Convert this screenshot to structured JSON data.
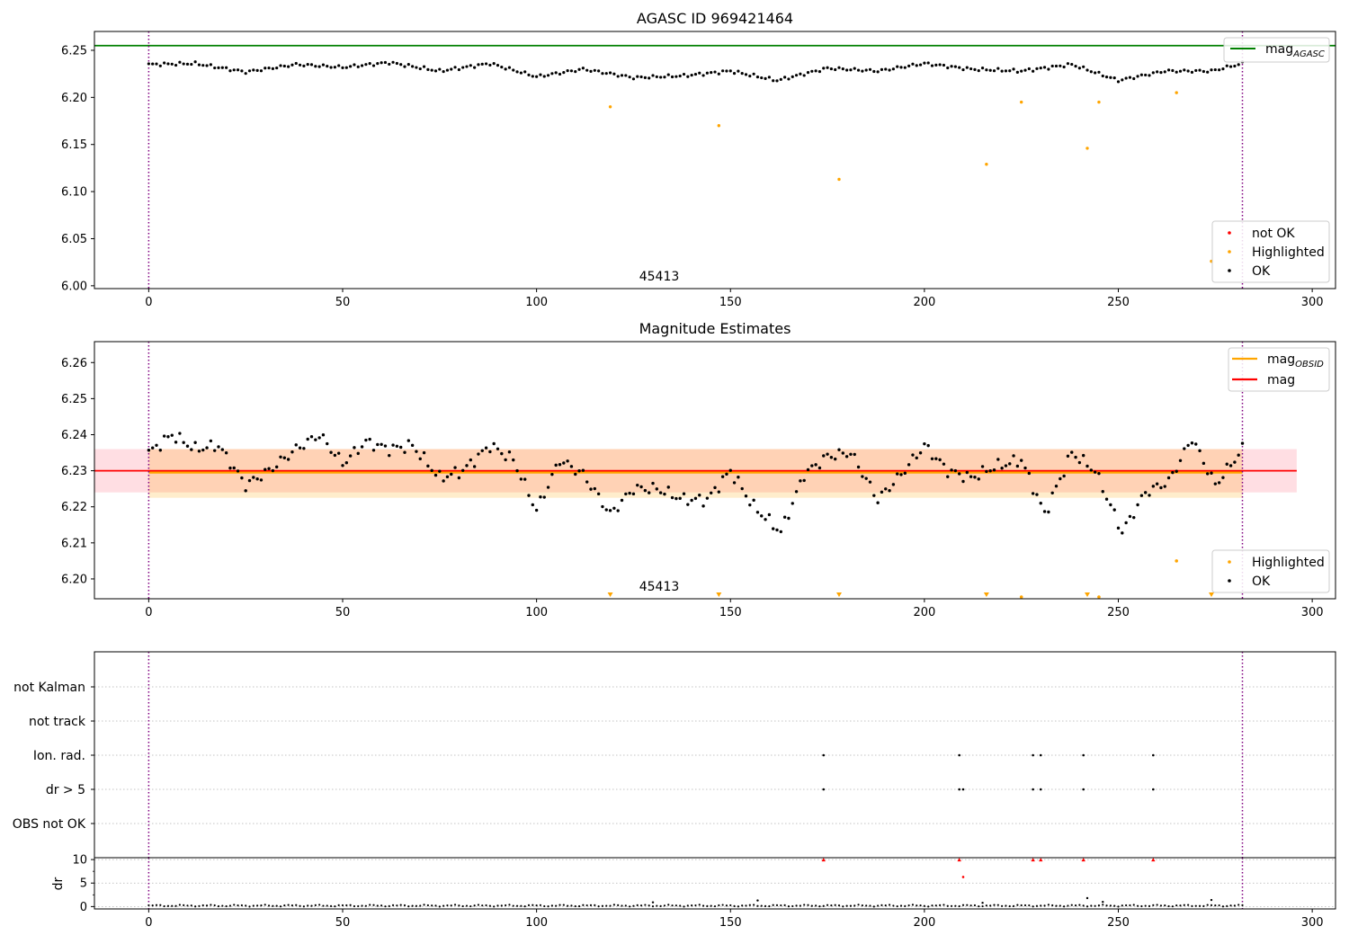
{
  "chart_data": [
    {
      "type": "scatter",
      "title": "AGASC ID 969421464",
      "annotation": "45413",
      "xlim": [
        -14,
        306
      ],
      "ylim": [
        5.997,
        6.27
      ],
      "x_ticks": [
        0,
        50,
        100,
        150,
        200,
        250,
        300
      ],
      "y_ticks": [
        6.0,
        6.05,
        6.1,
        6.15,
        6.2,
        6.25
      ],
      "grid": false,
      "vlines": [
        0,
        282
      ],
      "hlines": [
        {
          "name": "mag_AGASC",
          "label_main": "mag",
          "label_sub": "AGASC",
          "value": 6.255,
          "color": "#008000"
        }
      ],
      "legend_lines_placement": "top-right",
      "legend_points_placement": "bottom-right",
      "legend_points": [
        {
          "label": "not OK",
          "color": "#ff0000"
        },
        {
          "label": "Highlighted",
          "color": "#ffa500"
        },
        {
          "label": "OK",
          "color": "#000000"
        }
      ],
      "series": [
        {
          "name": "Highlighted",
          "color": "#ffa500",
          "x": [
            119,
            147,
            178,
            216,
            225,
            242,
            245,
            265,
            274
          ],
          "y": [
            6.19,
            6.17,
            6.113,
            6.129,
            6.195,
            6.146,
            6.195,
            6.205,
            6.026
          ]
        },
        {
          "name": "OK",
          "color": "#000000",
          "x": [
            0,
            12,
            25,
            38,
            50,
            62,
            75,
            88,
            100,
            112,
            125,
            138,
            150,
            162,
            175,
            188,
            200,
            212,
            225,
            238,
            250,
            262,
            274,
            282
          ],
          "y": [
            6.235,
            6.236,
            6.227,
            6.235,
            6.232,
            6.237,
            6.228,
            6.236,
            6.222,
            6.23,
            6.221,
            6.223,
            6.228,
            6.218,
            6.231,
            6.228,
            6.236,
            6.23,
            6.228,
            6.235,
            6.218,
            6.228,
            6.228,
            6.236
          ]
        }
      ]
    },
    {
      "type": "scatter",
      "title": "Magnitude Estimates",
      "annotation": "45413",
      "xlim": [
        -14,
        306
      ],
      "ylim": [
        6.1945,
        6.2658
      ],
      "x_ticks": [
        0,
        50,
        100,
        150,
        200,
        250,
        300
      ],
      "y_ticks": [
        6.2,
        6.21,
        6.22,
        6.23,
        6.24,
        6.25,
        6.26
      ],
      "grid": false,
      "vlines": [
        0,
        282
      ],
      "bands": [
        {
          "name": "mag_band",
          "x": [
            -14,
            296
          ],
          "y": [
            6.224,
            6.236
          ],
          "color": "#ffb6c1",
          "opacity": 0.45
        },
        {
          "name": "mag_obsid_band",
          "x": [
            0,
            282
          ],
          "y": [
            6.2225,
            6.236
          ],
          "color": "#ffa500",
          "opacity": 0.2
        }
      ],
      "hlines": [
        {
          "name": "mag_OBSID",
          "label_main": "mag",
          "label_sub": "OBSID",
          "value": 6.2295,
          "color": "#ffa500",
          "x": [
            0,
            282
          ]
        },
        {
          "name": "mag",
          "label_main": "mag",
          "label_sub": "",
          "value": 6.23,
          "color": "#ff0000",
          "x": [
            -14,
            296
          ]
        }
      ],
      "legend_lines_placement": "top-right",
      "legend_points_placement": "bottom-right",
      "legend_points": [
        {
          "label": "Highlighted",
          "color": "#ffa500"
        },
        {
          "label": "OK",
          "color": "#000000"
        }
      ],
      "offscale_markers": {
        "color": "#ffa500",
        "x": [
          119,
          147,
          178,
          216,
          242,
          274
        ]
      },
      "series": [
        {
          "name": "Highlighted",
          "color": "#ffa500",
          "x": [
            225,
            245,
            265
          ],
          "y": [
            6.195,
            6.195,
            6.205
          ]
        },
        {
          "name": "OK",
          "color": "#000000",
          "x": [
            0,
            6,
            12,
            18,
            25,
            31,
            38,
            44,
            50,
            56,
            62,
            68,
            75,
            81,
            88,
            94,
            100,
            106,
            112,
            119,
            125,
            131,
            138,
            144,
            150,
            156,
            163,
            169,
            175,
            181,
            188,
            194,
            200,
            206,
            212,
            218,
            225,
            231,
            238,
            244,
            251,
            257,
            263,
            269,
            275,
            282
          ],
          "y": [
            6.235,
            6.24,
            6.236,
            6.237,
            6.226,
            6.23,
            6.236,
            6.24,
            6.232,
            6.238,
            6.236,
            6.237,
            6.228,
            6.23,
            6.237,
            6.233,
            6.219,
            6.233,
            6.229,
            6.218,
            6.225,
            6.225,
            6.222,
            6.222,
            6.23,
            6.22,
            6.213,
            6.229,
            6.234,
            6.235,
            6.222,
            6.229,
            6.237,
            6.23,
            6.228,
            6.231,
            6.233,
            6.218,
            6.235,
            6.23,
            6.213,
            6.224,
            6.227,
            6.239,
            6.226,
            6.236
          ]
        }
      ]
    },
    {
      "type": "scatter",
      "title": "",
      "xlim": [
        -14,
        306
      ],
      "categories": [
        "not Kalman",
        "not track",
        "Ion. rad.",
        "dr > 5",
        "OBS not OK"
      ],
      "grid": "dotted",
      "vlines": [
        0,
        282
      ],
      "flag_points": [
        {
          "category": "Ion. rad.",
          "x": [
            174,
            209,
            228,
            230,
            241,
            259
          ]
        },
        {
          "category": "dr > 5",
          "x": [
            174,
            209,
            210,
            228,
            230,
            241,
            259
          ]
        }
      ]
    },
    {
      "type": "scatter",
      "title": "",
      "ylabel": "dr",
      "xlim": [
        -14,
        306
      ],
      "ylim": [
        -0.5,
        10.4
      ],
      "x_ticks": [
        0,
        50,
        100,
        150,
        200,
        250,
        300
      ],
      "y_ticks": [
        0,
        5,
        10
      ],
      "grid": "dotted",
      "vlines": [
        0,
        282
      ],
      "series": [
        {
          "name": "dr",
          "color": "#000000",
          "baseline": 0.2,
          "baseline_step": 1,
          "x": [
            130,
            157,
            215,
            242,
            246,
            274
          ],
          "y": [
            0.9,
            1.3,
            0.8,
            1.8,
            1.0,
            1.4
          ]
        },
        {
          "name": "dr_not_ok",
          "color": "#ff0000",
          "x": [
            174,
            209,
            210,
            228,
            230,
            241,
            259
          ],
          "y": [
            10,
            10,
            6.3,
            10,
            10,
            10,
            10
          ]
        }
      ]
    }
  ]
}
